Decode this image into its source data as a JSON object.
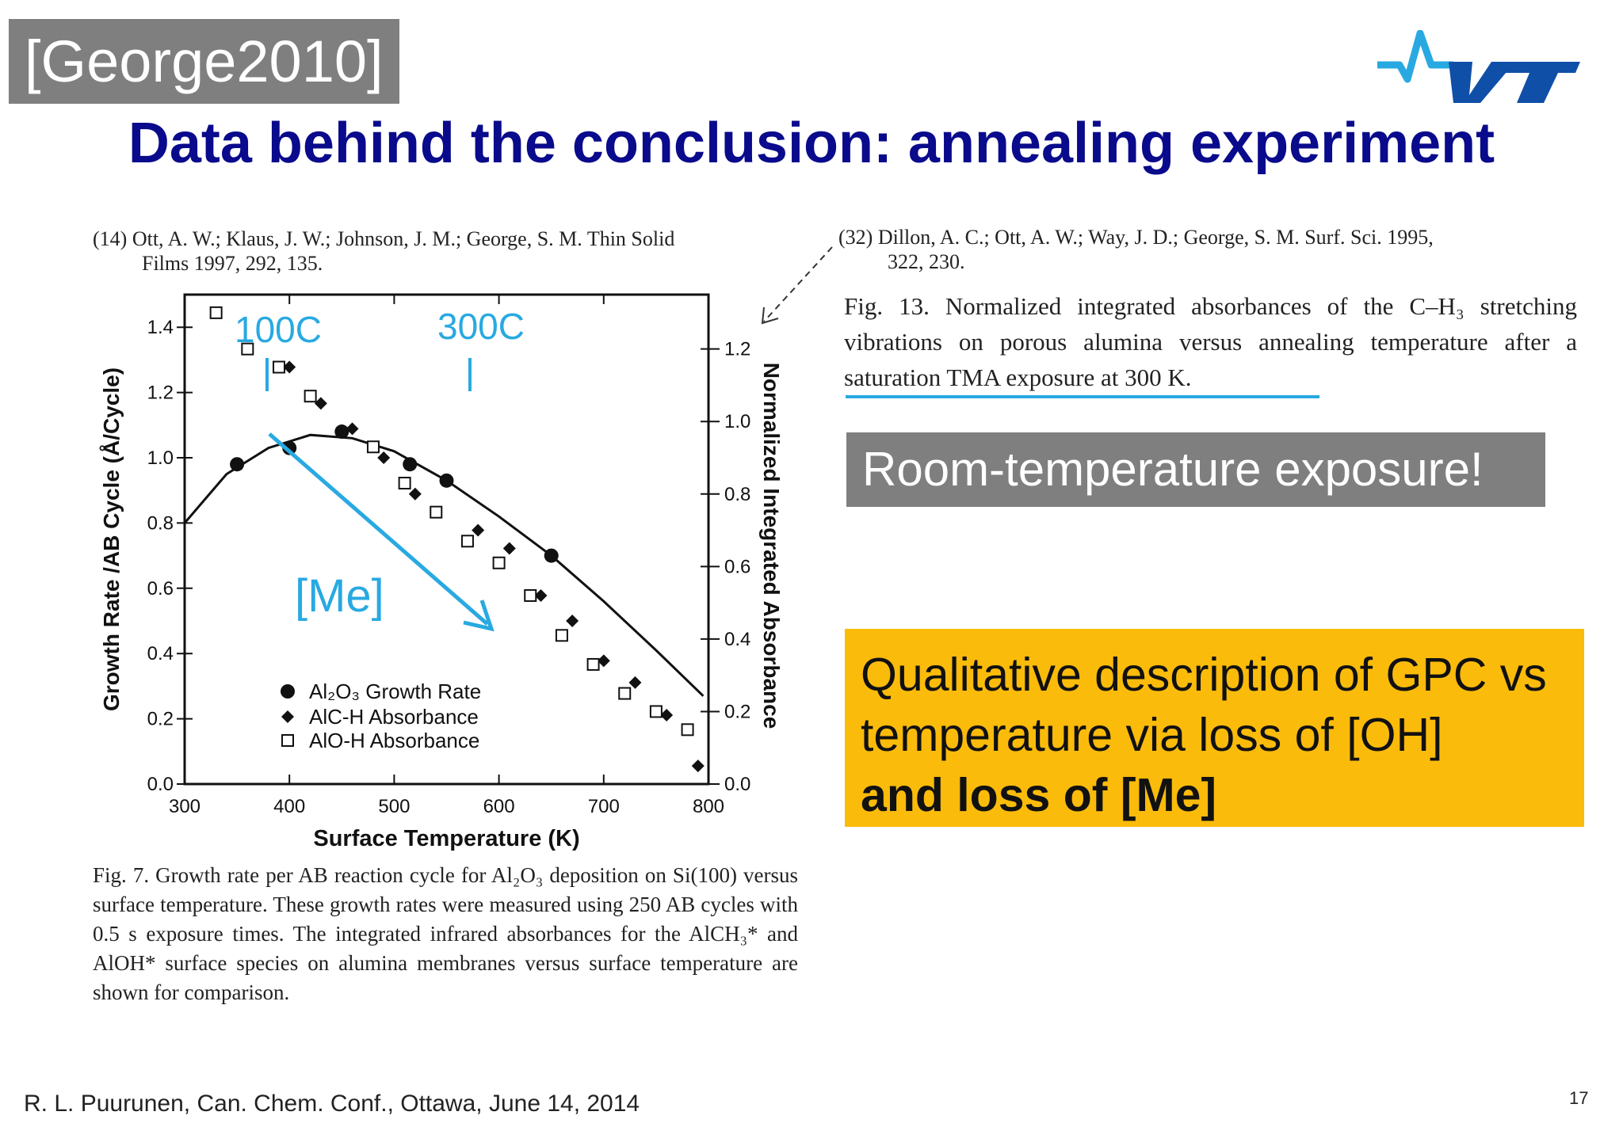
{
  "slide": {
    "reference_tag": "[George2010]",
    "title": "Data behind the conclusion: annealing experiment",
    "logo_text": "VTT",
    "footer": "R. L. Puurunen, Can. Chem. Conf., Ottawa, June 14, 2014",
    "page_number": "17"
  },
  "ref14": {
    "line1": "(14) Ott, A. W.; Klaus, J. W.; Johnson, J. M.; George, S. M. Thin Solid",
    "line2": "Films 1997, 292, 135."
  },
  "ref32": {
    "line1": "(32) Dillon, A. C.; Ott, A. W.; Way, J. D.; George, S. M. Surf. Sci. 1995,",
    "line2": "322, 230."
  },
  "fig13_caption": "Fig. 13. Normalized integrated absorbances of the C–H₃ stretching vibrations on porous alumina versus annealing temperature after a saturation TMA exposure at 300 K.",
  "room_temp_box": "Room-temperature exposure!",
  "qualitative_box": {
    "text": "Qualitative description of GPC vs temperature via loss of [OH]",
    "bold": "and loss of [Me]"
  },
  "fig7_caption": "Fig. 7. Growth rate per AB reaction cycle for Al₂O₃ deposition on Si(100) versus surface temperature. These growth rates were measured using 250 AB cycles with 0.5 s exposure times. The integrated infrared absorbances for the AlCH₃* and AlOH* surface species on alumina membranes versus surface temperature are shown for comparison.",
  "annotations": {
    "label_100C": "100C",
    "label_300C": "300C",
    "label_me": "[Me]",
    "accent_color": "#29a9e1"
  },
  "chart_data": {
    "type": "scatter",
    "xlabel": "Surface Temperature (K)",
    "ylabel": "Growth Rate /AB Cycle (Å/Cycle)",
    "y2label": "Normalized Integrated Absorbance",
    "xlim": [
      300,
      800
    ],
    "ylim": [
      0.0,
      1.5
    ],
    "y2lim": [
      0.0,
      1.35
    ],
    "x_ticks": [
      300,
      400,
      500,
      600,
      700,
      800
    ],
    "y_ticks": [
      "0.0",
      "0.2",
      "0.4",
      "0.6",
      "0.8",
      "1.0",
      "1.2",
      "1.4"
    ],
    "y2_ticks": [
      "0.0",
      "0.2",
      "0.4",
      "0.6",
      "0.8",
      "1.0",
      "1.2"
    ],
    "legend": [
      "Al₂O₃ Growth Rate",
      "AlC-H Absorbance",
      "AlO-H Absorbance"
    ],
    "legend_position": "bottom-left",
    "series": [
      {
        "name": "Al₂O₃ Growth Rate",
        "marker": "circle",
        "axis": "left",
        "x": [
          350,
          400,
          450,
          515,
          550,
          650
        ],
        "y": [
          0.98,
          1.03,
          1.08,
          0.98,
          0.93,
          0.7
        ]
      },
      {
        "name": "AlC-H Absorbance",
        "marker": "diamond",
        "axis": "right",
        "x": [
          400,
          430,
          460,
          490,
          520,
          580,
          610,
          640,
          670,
          700,
          730,
          760,
          790
        ],
        "y": [
          1.15,
          1.05,
          0.98,
          0.9,
          0.8,
          0.7,
          0.65,
          0.52,
          0.45,
          0.34,
          0.28,
          0.19,
          0.05
        ]
      },
      {
        "name": "AlO-H Absorbance",
        "marker": "square",
        "axis": "right",
        "x": [
          330,
          360,
          390,
          420,
          480,
          510,
          540,
          570,
          600,
          630,
          660,
          690,
          720,
          750,
          780
        ],
        "y": [
          1.3,
          1.2,
          1.15,
          1.07,
          0.93,
          0.83,
          0.75,
          0.67,
          0.61,
          0.52,
          0.41,
          0.33,
          0.25,
          0.2,
          0.15
        ]
      }
    ]
  }
}
